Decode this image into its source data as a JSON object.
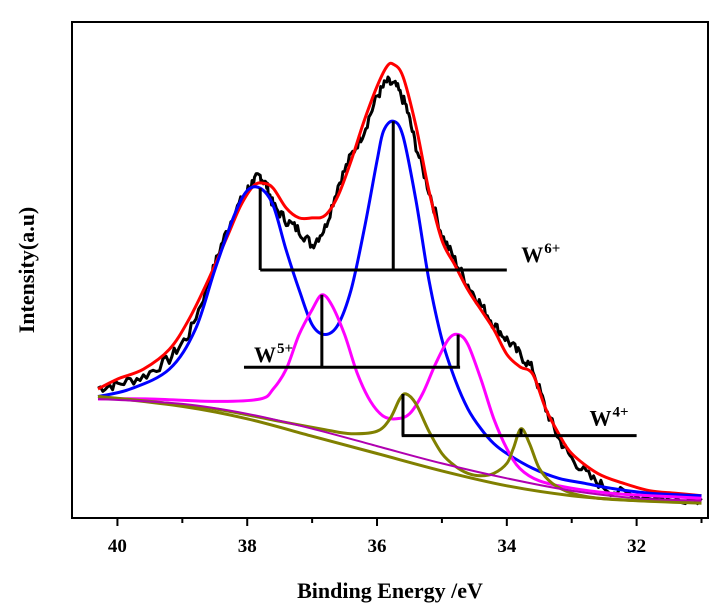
{
  "chart_data": {
    "type": "line",
    "title": "",
    "xlabel": "Binding Energy /eV",
    "ylabel": "Intensity(a.u)",
    "xlim": [
      40.7,
      30.9
    ],
    "ylim": [
      0,
      1.0
    ],
    "x_reversed": true,
    "x_ticks": [
      40,
      38,
      36,
      34,
      32
    ],
    "grid": false,
    "legend": "none",
    "series": [
      {
        "color": "#000000",
        "width": 3,
        "noise": true,
        "x": [
          40.3,
          40.0,
          39.6,
          39.2,
          38.9,
          38.6,
          38.4,
          38.2,
          38.0,
          37.9,
          37.8,
          37.7,
          37.6,
          37.4,
          37.2,
          37.0,
          36.8,
          36.6,
          36.4,
          36.2,
          36.0,
          35.85,
          35.7,
          35.55,
          35.4,
          35.2,
          35.0,
          34.8,
          34.6,
          34.4,
          34.2,
          34.0,
          33.8,
          33.6,
          33.4,
          33.2,
          33.0,
          32.7,
          32.4,
          32.0,
          31.5,
          31.0
        ],
        "y": [
          0.262,
          0.27,
          0.285,
          0.32,
          0.37,
          0.47,
          0.55,
          0.615,
          0.66,
          0.68,
          0.69,
          0.67,
          0.63,
          0.6,
          0.58,
          0.55,
          0.585,
          0.67,
          0.73,
          0.78,
          0.85,
          0.88,
          0.87,
          0.83,
          0.75,
          0.66,
          0.57,
          0.52,
          0.47,
          0.43,
          0.39,
          0.36,
          0.33,
          0.3,
          0.22,
          0.16,
          0.12,
          0.08,
          0.055,
          0.045,
          0.04,
          0.04
        ]
      },
      {
        "color": "#ff0000",
        "width": 3,
        "noise": false,
        "x": [
          40.3,
          40.0,
          39.6,
          39.2,
          38.9,
          38.6,
          38.3,
          38.1,
          37.9,
          37.75,
          37.6,
          37.4,
          37.2,
          37.0,
          36.8,
          36.6,
          36.4,
          36.2,
          36.0,
          35.85,
          35.75,
          35.6,
          35.4,
          35.2,
          35.0,
          34.8,
          34.6,
          34.4,
          34.2,
          34.0,
          33.8,
          33.6,
          33.4,
          33.2,
          33.0,
          32.6,
          32.2,
          31.8,
          31.4,
          31.0
        ],
        "y": [
          0.26,
          0.28,
          0.3,
          0.34,
          0.4,
          0.48,
          0.57,
          0.63,
          0.67,
          0.675,
          0.665,
          0.625,
          0.605,
          0.605,
          0.61,
          0.65,
          0.72,
          0.8,
          0.87,
          0.91,
          0.915,
          0.89,
          0.79,
          0.66,
          0.56,
          0.51,
          0.46,
          0.42,
          0.38,
          0.33,
          0.305,
          0.29,
          0.22,
          0.17,
          0.13,
          0.09,
          0.07,
          0.055,
          0.05,
          0.045
        ]
      },
      {
        "color": "#0000ff",
        "width": 3,
        "noise": false,
        "x": [
          40.3,
          39.8,
          39.2,
          38.8,
          38.5,
          38.2,
          38.0,
          37.8,
          37.6,
          37.4,
          37.2,
          37.0,
          36.8,
          36.6,
          36.4,
          36.2,
          36.0,
          35.9,
          35.75,
          35.6,
          35.4,
          35.2,
          35.0,
          34.8,
          34.6,
          34.4,
          34.2,
          34.0,
          33.6,
          33.2,
          32.8,
          32.4,
          31.8,
          31.0
        ],
        "y": [
          0.245,
          0.26,
          0.3,
          0.38,
          0.5,
          0.61,
          0.66,
          0.665,
          0.63,
          0.54,
          0.46,
          0.39,
          0.37,
          0.39,
          0.46,
          0.58,
          0.72,
          0.78,
          0.8,
          0.77,
          0.64,
          0.48,
          0.36,
          0.28,
          0.22,
          0.18,
          0.15,
          0.13,
          0.1,
          0.08,
          0.07,
          0.06,
          0.05,
          0.045
        ]
      },
      {
        "color": "#ff00ff",
        "width": 3,
        "noise": false,
        "x": [
          40.3,
          39.5,
          38.5,
          37.8,
          37.6,
          37.4,
          37.2,
          37.0,
          36.85,
          36.7,
          36.5,
          36.3,
          36.1,
          35.9,
          35.7,
          35.5,
          35.3,
          35.1,
          34.9,
          34.75,
          34.6,
          34.4,
          34.2,
          34.0,
          33.8,
          33.5,
          33.0,
          32.4,
          31.8,
          31.0
        ],
        "y": [
          0.24,
          0.24,
          0.235,
          0.24,
          0.26,
          0.3,
          0.37,
          0.42,
          0.45,
          0.43,
          0.37,
          0.29,
          0.235,
          0.205,
          0.2,
          0.21,
          0.25,
          0.31,
          0.36,
          0.37,
          0.35,
          0.28,
          0.2,
          0.14,
          0.1,
          0.075,
          0.06,
          0.05,
          0.045,
          0.04
        ]
      },
      {
        "color": "#808000",
        "width": 3,
        "noise": false,
        "x": [
          40.3,
          39.5,
          38.5,
          37.5,
          36.8,
          36.4,
          36.0,
          35.8,
          35.65,
          35.55,
          35.4,
          35.2,
          35.0,
          34.8,
          34.6,
          34.4,
          34.2,
          34.0,
          33.9,
          33.78,
          33.65,
          33.5,
          33.3,
          33.0,
          32.6,
          32.0,
          31.5,
          31.0
        ],
        "y": [
          0.245,
          0.235,
          0.22,
          0.195,
          0.178,
          0.17,
          0.175,
          0.2,
          0.24,
          0.25,
          0.23,
          0.175,
          0.13,
          0.105,
          0.09,
          0.085,
          0.09,
          0.11,
          0.14,
          0.18,
          0.15,
          0.1,
          0.07,
          0.05,
          0.04,
          0.035,
          0.033,
          0.03
        ]
      },
      {
        "color": "#808000",
        "width": 3,
        "noise": false,
        "x": [
          40.3,
          39.0,
          38.0,
          37.0,
          36.0,
          35.0,
          34.0,
          33.0,
          32.0,
          31.0
        ],
        "y": [
          0.245,
          0.225,
          0.2,
          0.165,
          0.13,
          0.095,
          0.065,
          0.045,
          0.035,
          0.03
        ]
      },
      {
        "color": "#b000b0",
        "width": 2,
        "noise": false,
        "x": [
          40.3,
          39.0,
          38.0,
          37.0,
          36.0,
          35.0,
          34.0,
          33.0,
          32.0,
          31.0
        ],
        "y": [
          0.24,
          0.23,
          0.21,
          0.18,
          0.145,
          0.11,
          0.08,
          0.055,
          0.04,
          0.035
        ]
      }
    ],
    "annotations": [
      {
        "label": "W",
        "sup": "6+",
        "color": "#000000",
        "hline": {
          "x1": 37.8,
          "x2": 34.0,
          "y": 0.5
        },
        "vlines": [
          {
            "x": 37.8,
            "y_top": 0.665
          },
          {
            "x": 35.75,
            "y_top": 0.8
          }
        ],
        "text_at": {
          "x": 33.9,
          "y": 0.5
        }
      },
      {
        "label": "W",
        "sup": "5+",
        "color": "#000000",
        "hline": {
          "x1": 38.05,
          "x2": 34.72,
          "y": 0.304
        },
        "vlines": [
          {
            "x": 36.85,
            "y_top": 0.45
          },
          {
            "x": 34.75,
            "y_top": 0.37
          }
        ],
        "text_at": {
          "x": 38.05,
          "y": 0.304
        }
      },
      {
        "label": "W",
        "sup": "4+",
        "color": "#000000",
        "hline": {
          "x1": 35.62,
          "x2": 32.0,
          "y": 0.166
        },
        "vlines": [
          {
            "x": 35.6,
            "y_top": 0.25
          },
          {
            "x": 33.78,
            "y_top": 0.18
          }
        ],
        "text_at": {
          "x": 32.85,
          "y": 0.166
        }
      }
    ]
  }
}
